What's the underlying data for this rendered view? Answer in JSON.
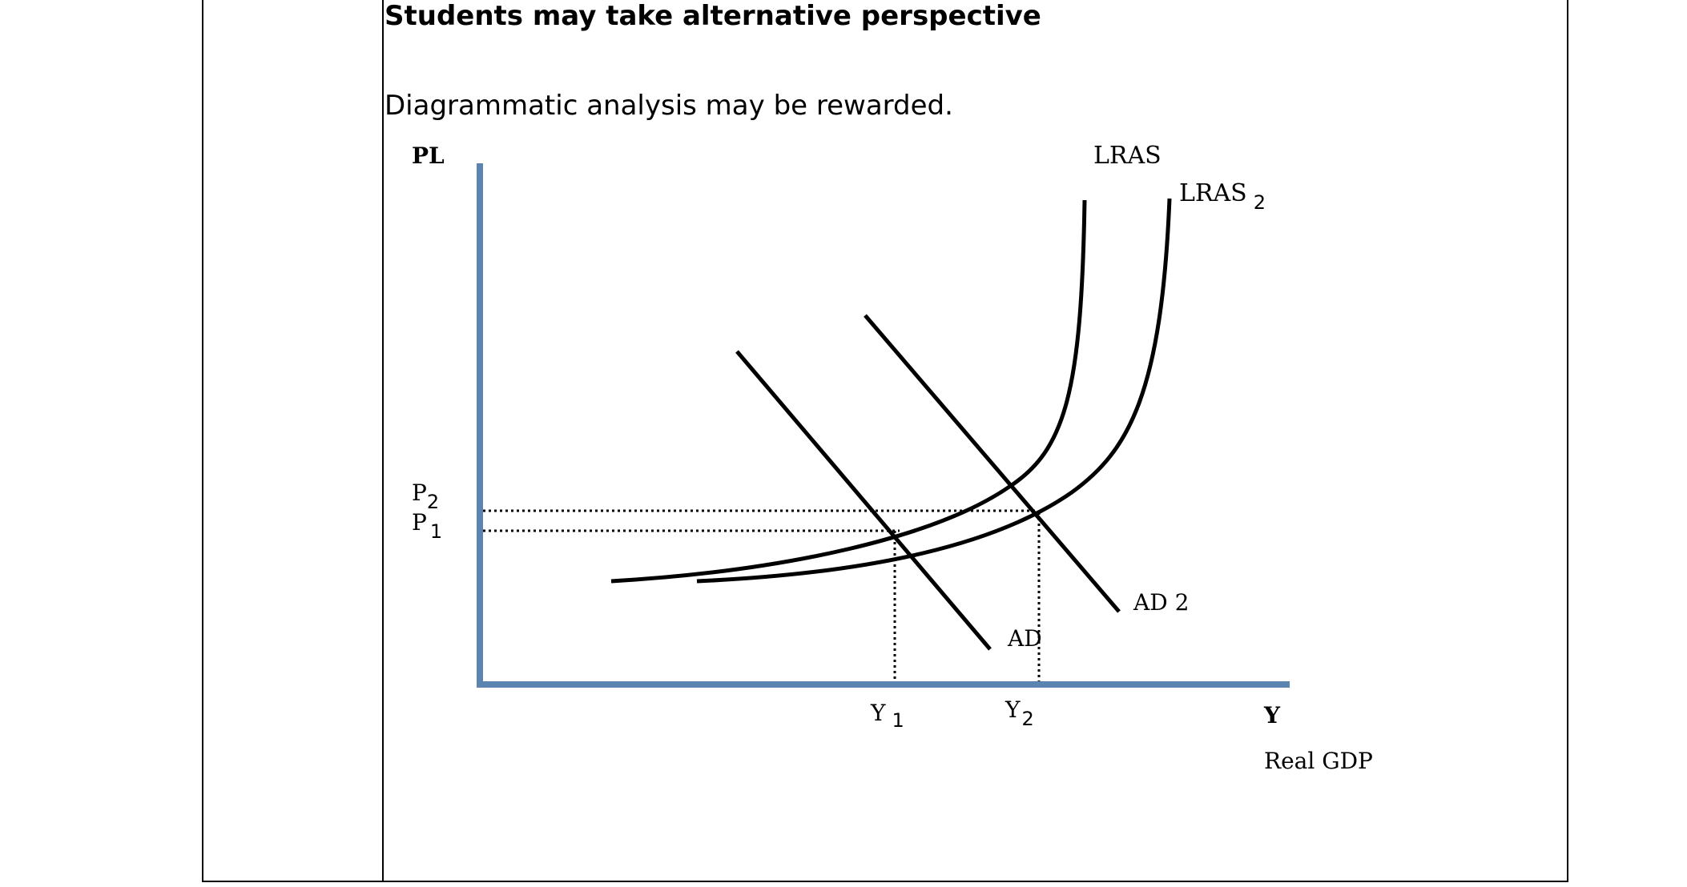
{
  "document": {
    "heading": "Students may take alternative perspective",
    "paragraph": "Diagrammatic analysis may be rewarded."
  },
  "diagram": {
    "y_axis_label": "PL",
    "x_axis_label": "Y",
    "x_axis_title": "Real GDP",
    "curves": {
      "lras": "LRAS",
      "lras2": "LRAS",
      "lras2_sub": "2",
      "ad": "AD",
      "ad2": "AD 2"
    },
    "price_levels": {
      "p2": "P",
      "p2_sub": "2",
      "p1": "P",
      "p1_sub": "1"
    },
    "outputs": {
      "y1": "Y",
      "y1_sub": "1",
      "y2": "Y",
      "y2_sub": "2"
    },
    "colors": {
      "axis": "#5b84b1",
      "curve": "#000000",
      "guide": "#000000"
    }
  }
}
